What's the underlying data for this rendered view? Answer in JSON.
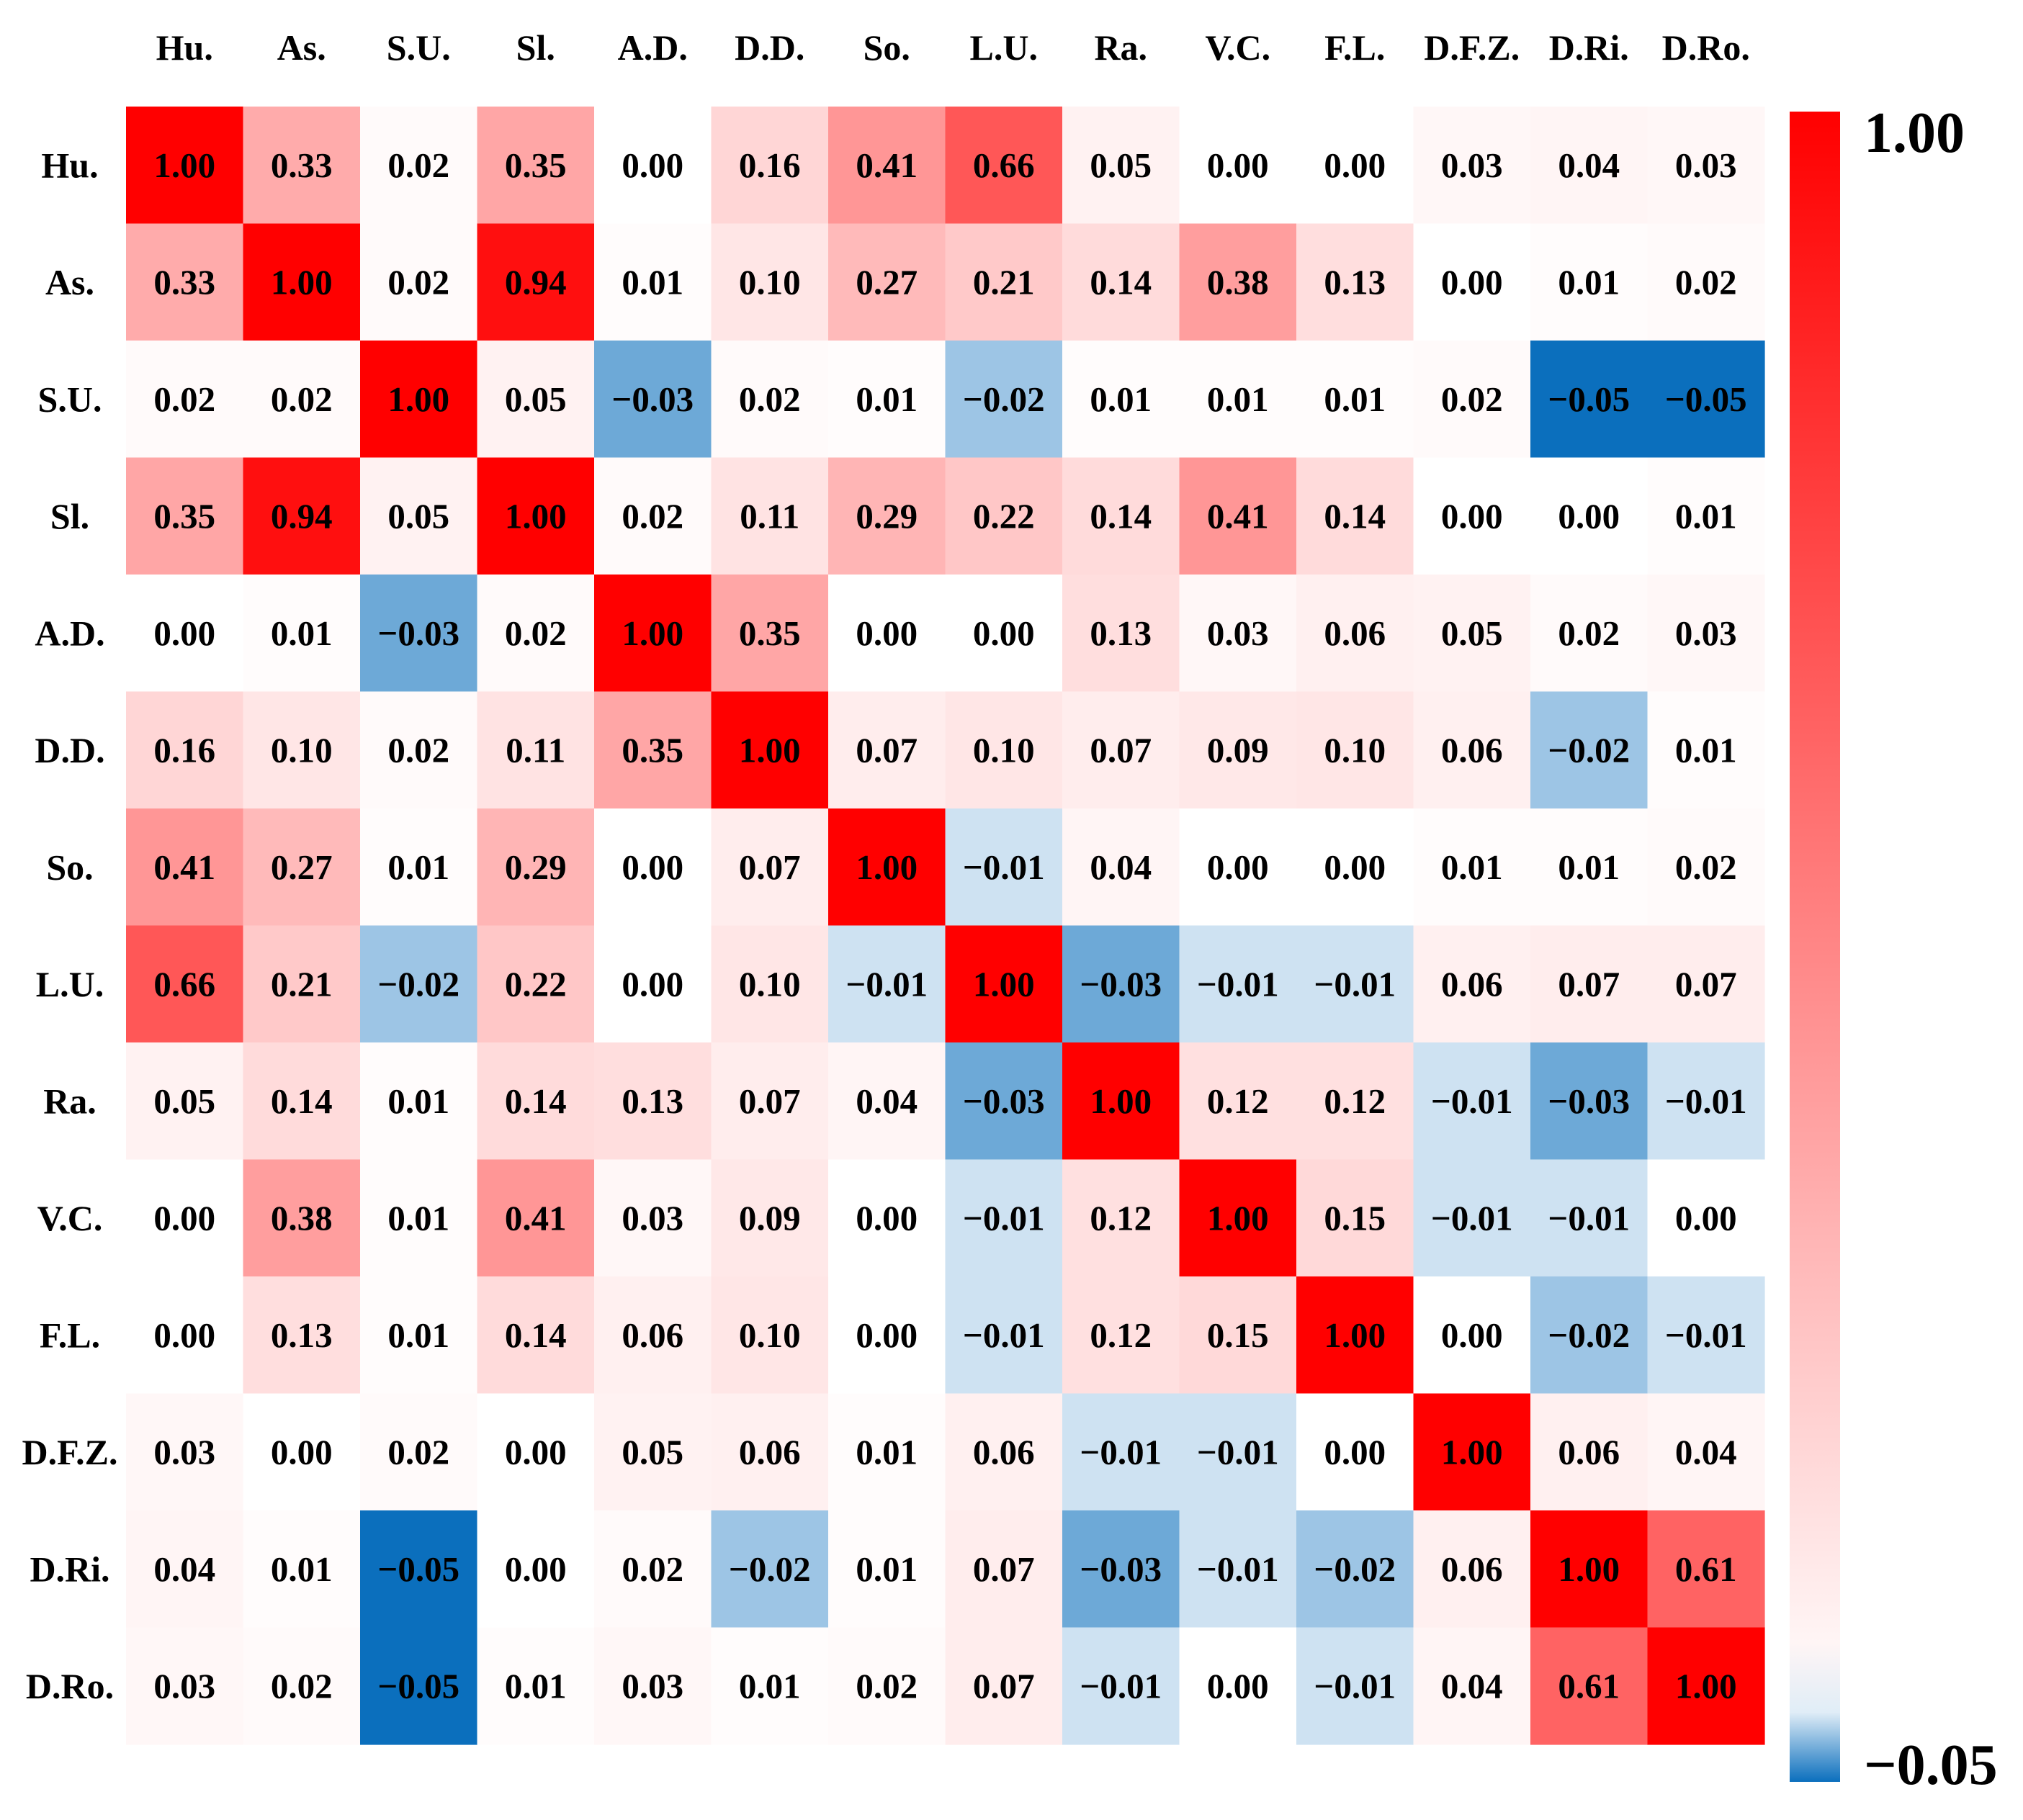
{
  "chart_data": {
    "type": "heatmap",
    "title": "",
    "xlabel": "",
    "ylabel": "",
    "labels": [
      "Hu.",
      "As.",
      "S.U.",
      "Sl.",
      "A.D.",
      "D.D.",
      "So.",
      "L.U.",
      "Ra.",
      "V.C.",
      "F.L.",
      "D.F.Z.",
      "D.Ri.",
      "D.Ro."
    ],
    "value_labels": [
      [
        "1.00",
        "0.33",
        "0.02",
        "0.35",
        "0.00",
        "0.16",
        "0.41",
        "0.66",
        "0.05",
        "0.00",
        "0.00",
        "0.03",
        "0.04",
        "0.03"
      ],
      [
        "0.33",
        "1.00",
        "0.02",
        "0.94",
        "0.01",
        "0.10",
        "0.27",
        "0.21",
        "0.14",
        "0.38",
        "0.13",
        "0.00",
        "0.01",
        "0.02"
      ],
      [
        "0.02",
        "0.02",
        "1.00",
        "0.05",
        "−0.03",
        "0.02",
        "0.01",
        "−0.02",
        "0.01",
        "0.01",
        "0.01",
        "0.02",
        "−0.05",
        "−0.05"
      ],
      [
        "0.35",
        "0.94",
        "0.05",
        "1.00",
        "0.02",
        "0.11",
        "0.29",
        "0.22",
        "0.14",
        "0.41",
        "0.14",
        "0.00",
        "0.00",
        "0.01"
      ],
      [
        "0.00",
        "0.01",
        "−0.03",
        "0.02",
        "1.00",
        "0.35",
        "0.00",
        "0.00",
        "0.13",
        "0.03",
        "0.06",
        "0.05",
        "0.02",
        "0.03"
      ],
      [
        "0.16",
        "0.10",
        "0.02",
        "0.11",
        "0.35",
        "1.00",
        "0.07",
        "0.10",
        "0.07",
        "0.09",
        "0.10",
        "0.06",
        "−0.02",
        "0.01"
      ],
      [
        "0.41",
        "0.27",
        "0.01",
        "0.29",
        "0.00",
        "0.07",
        "1.00",
        "−0.01",
        "0.04",
        "0.00",
        "0.00",
        "0.01",
        "0.01",
        "0.02"
      ],
      [
        "0.66",
        "0.21",
        "−0.02",
        "0.22",
        "0.00",
        "0.10",
        "−0.01",
        "1.00",
        "−0.03",
        "−0.01",
        "−0.01",
        "0.06",
        "0.07",
        "0.07"
      ],
      [
        "0.05",
        "0.14",
        "0.01",
        "0.14",
        "0.13",
        "0.07",
        "0.04",
        "−0.03",
        "1.00",
        "0.12",
        "0.12",
        "−0.01",
        "−0.03",
        "−0.01"
      ],
      [
        "0.00",
        "0.38",
        "0.01",
        "0.41",
        "0.03",
        "0.09",
        "0.00",
        "−0.01",
        "0.12",
        "1.00",
        "0.15",
        "−0.01",
        "−0.01",
        "0.00"
      ],
      [
        "0.00",
        "0.13",
        "0.01",
        "0.14",
        "0.06",
        "0.10",
        "0.00",
        "−0.01",
        "0.12",
        "0.15",
        "1.00",
        "0.00",
        "−0.02",
        "−0.01"
      ],
      [
        "0.03",
        "0.00",
        "0.02",
        "0.00",
        "0.05",
        "0.06",
        "0.01",
        "0.06",
        "−0.01",
        "−0.01",
        "0.00",
        "1.00",
        "0.06",
        "0.04"
      ],
      [
        "0.04",
        "0.01",
        "−0.05",
        "0.00",
        "0.02",
        "−0.02",
        "0.01",
        "0.07",
        "−0.03",
        "−0.01",
        "−0.02",
        "0.06",
        "1.00",
        "0.61"
      ],
      [
        "0.03",
        "0.02",
        "−0.05",
        "0.01",
        "0.03",
        "0.01",
        "0.02",
        "0.07",
        "−0.01",
        "0.00",
        "−0.01",
        "0.04",
        "0.61",
        "1.00"
      ]
    ],
    "colorbar": {
      "max": 1.0,
      "min": -0.05,
      "center": 0.0,
      "max_label": "1.00",
      "min_label": "−0.05",
      "colors": [
        "#0b6fbd",
        "#ffffff",
        "#ff0000"
      ]
    },
    "grid": false
  }
}
